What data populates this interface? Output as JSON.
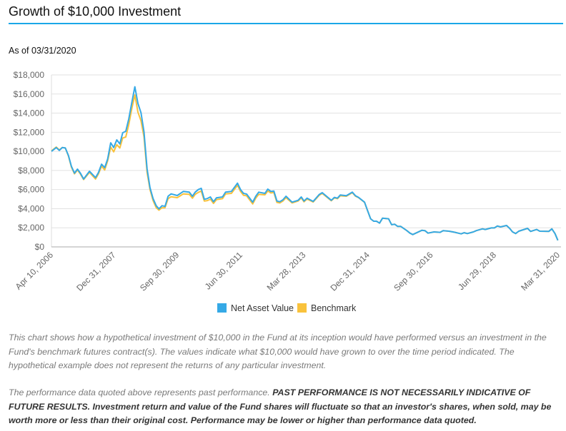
{
  "header": {
    "title": "Growth of $10,000 Investment",
    "as_of": "As of 03/31/2020"
  },
  "colors": {
    "accent": "#1aa7e8",
    "nav": "#35a9e6",
    "benchmark": "#f9c23c"
  },
  "chart_data": {
    "type": "line",
    "title": "",
    "xlabel": "",
    "ylabel": "",
    "ylim": [
      0,
      18000
    ],
    "xlim": [
      "2006-04-10",
      "2020-03-31"
    ],
    "grid": true,
    "legend_position": "bottom",
    "y_ticks": [
      "$0",
      "$2,000",
      "$4,000",
      "$6,000",
      "$8,000",
      "$10,000",
      "$12,000",
      "$14,000",
      "$16,000",
      "$18,000"
    ],
    "y_tick_values": [
      0,
      2000,
      4000,
      6000,
      8000,
      10000,
      12000,
      14000,
      16000,
      18000
    ],
    "x_ticks": [
      {
        "date": "2006-04-10",
        "label": "Apr 10, 2006"
      },
      {
        "date": "2007-12-31",
        "label": "Dec 31, 2007"
      },
      {
        "date": "2009-09-30",
        "label": "Sep 30, 2009"
      },
      {
        "date": "2011-06-30",
        "label": "Jun 30, 2011"
      },
      {
        "date": "2013-03-28",
        "label": "Mar 28, 2013"
      },
      {
        "date": "2014-12-31",
        "label": "Dec 31, 2014"
      },
      {
        "date": "2016-09-30",
        "label": "Sep 30, 2016"
      },
      {
        "date": "2018-06-29",
        "label": "Jun 29, 2018"
      },
      {
        "date": "2020-03-31",
        "label": "Mar 31, 2020"
      }
    ],
    "x": [
      "2006-04",
      "2006-05",
      "2006-06",
      "2006-07",
      "2006-08",
      "2006-09",
      "2006-10",
      "2006-11",
      "2006-12",
      "2007-01",
      "2007-02",
      "2007-04",
      "2007-06",
      "2007-07",
      "2007-08",
      "2007-09",
      "2007-10",
      "2007-11",
      "2007-12",
      "2008-01",
      "2008-02",
      "2008-03",
      "2008-04",
      "2008-05",
      "2008-06",
      "2008-07",
      "2008-08",
      "2008-09",
      "2008-10",
      "2008-11",
      "2008-12",
      "2009-01",
      "2009-02",
      "2009-03",
      "2009-04",
      "2009-05",
      "2009-06",
      "2009-07",
      "2009-09",
      "2009-11",
      "2010-01",
      "2010-02",
      "2010-03",
      "2010-04",
      "2010-05",
      "2010-06",
      "2010-07",
      "2010-08",
      "2010-09",
      "2010-10",
      "2010-12",
      "2011-01",
      "2011-03",
      "2011-05",
      "2011-06",
      "2011-07",
      "2011-08",
      "2011-10",
      "2011-11",
      "2011-12",
      "2012-02",
      "2012-03",
      "2012-04",
      "2012-05",
      "2012-06",
      "2012-07",
      "2012-08",
      "2012-09",
      "2012-11",
      "2013-01",
      "2013-02",
      "2013-03",
      "2013-04",
      "2013-06",
      "2013-08",
      "2013-09",
      "2013-12",
      "2014-01",
      "2014-02",
      "2014-03",
      "2014-05",
      "2014-07",
      "2014-08",
      "2014-09",
      "2014-11",
      "2014-12",
      "2015-01",
      "2015-02",
      "2015-03",
      "2015-04",
      "2015-05",
      "2015-07",
      "2015-08",
      "2015-09",
      "2015-10",
      "2015-11",
      "2016-01",
      "2016-02",
      "2016-03",
      "2016-04",
      "2016-06",
      "2016-07",
      "2016-08",
      "2016-10",
      "2016-12",
      "2017-01",
      "2017-03",
      "2017-05",
      "2017-06",
      "2017-07",
      "2017-08",
      "2017-09",
      "2017-11",
      "2017-12",
      "2018-02",
      "2018-03",
      "2018-05",
      "2018-06",
      "2018-07",
      "2018-08",
      "2018-10",
      "2018-11",
      "2018-12",
      "2019-01",
      "2019-02",
      "2019-05",
      "2019-06",
      "2019-08",
      "2019-09",
      "2019-12",
      "2020-01",
      "2020-02",
      "2020-03"
    ],
    "series": [
      {
        "name": "Net Asset Value",
        "color": "#35a9e6",
        "values": [
          10000,
          10400,
          10100,
          10400,
          10350,
          9560,
          8440,
          7720,
          8140,
          7690,
          7100,
          7920,
          7250,
          7790,
          8660,
          8300,
          9190,
          10900,
          10400,
          11200,
          10780,
          11950,
          12100,
          13400,
          15130,
          16760,
          15020,
          14040,
          12030,
          8170,
          6200,
          5060,
          4310,
          3980,
          4310,
          4240,
          5300,
          5550,
          5380,
          5800,
          5730,
          5300,
          5730,
          6000,
          6130,
          4980,
          5060,
          5230,
          4730,
          5130,
          5230,
          5730,
          5800,
          6670,
          6000,
          5600,
          5530,
          4680,
          5300,
          5730,
          5600,
          6050,
          5800,
          5850,
          4800,
          4730,
          4930,
          5300,
          4680,
          4880,
          5230,
          4800,
          5100,
          4760,
          5480,
          5680,
          4880,
          5180,
          5100,
          5430,
          5360,
          5730,
          5360,
          5180,
          4680,
          3810,
          2940,
          2690,
          2690,
          2490,
          3010,
          2940,
          2320,
          2370,
          2140,
          2140,
          1700,
          1440,
          1290,
          1440,
          1740,
          1700,
          1440,
          1570,
          1520,
          1700,
          1640,
          1520,
          1440,
          1370,
          1490,
          1400,
          1570,
          1700,
          1890,
          1820,
          1990,
          1990,
          2190,
          2090,
          2240,
          1940,
          1570,
          1400,
          1640,
          1940,
          1620,
          1820,
          1640,
          1620,
          1890,
          1400,
          690
        ]
      },
      {
        "name": "Benchmark",
        "color": "#f9c23c",
        "values": [
          10050,
          10450,
          10150,
          10400,
          10350,
          9500,
          8350,
          7650,
          8050,
          7600,
          7050,
          7800,
          7100,
          7650,
          8450,
          8050,
          9000,
          10450,
          9950,
          10700,
          10350,
          11400,
          11500,
          12800,
          14500,
          15900,
          14100,
          13200,
          11500,
          7800,
          6000,
          4850,
          4100,
          3850,
          4100,
          4100,
          5050,
          5250,
          5150,
          5550,
          5500,
          5100,
          5500,
          5700,
          5850,
          4800,
          4850,
          5000,
          4550,
          4950,
          5050,
          5550,
          5600,
          6450,
          5800,
          5400,
          5350,
          4500,
          5100,
          5500,
          5450,
          5850,
          5650,
          5700,
          4650,
          4600,
          4800,
          5150,
          4600,
          4800,
          5130,
          4720,
          5020,
          4700,
          5400,
          5600,
          4830,
          5120,
          5050,
          5350,
          5300,
          5680,
          5320,
          5150,
          4660,
          3800,
          2940,
          2690,
          2690,
          2490,
          3010,
          2940,
          2320,
          2370,
          2140,
          2140,
          1700,
          1440,
          1290,
          1440,
          1740,
          1700,
          1440,
          1570,
          1520,
          1700,
          1640,
          1520,
          1440,
          1370,
          1490,
          1400,
          1570,
          1700,
          1890,
          1820,
          1990,
          1990,
          2190,
          2090,
          2240,
          1940,
          1570,
          1400,
          1640,
          1940,
          1620,
          1820,
          1640,
          1620,
          1890,
          1400,
          690
        ]
      }
    ]
  },
  "legend": {
    "nav_label": "Net Asset Value",
    "benchmark_label": "Benchmark"
  },
  "notes": {
    "p1": "This chart shows how a hypothetical investment of $10,000 in the Fund at its inception would have performed versus an investment in the Fund's benchmark futures contract(s). The values indicate what $10,000 would have grown to over the time period indicated. The hypothetical example does not represent the returns of any particular investment.",
    "p2_regular": "The performance data quoted above represents past performance. ",
    "p2_bold": "PAST PERFORMANCE IS NOT NECESSARILY INDICATIVE OF FUTURE RESULTS. Investment return and value of the Fund shares will fluctuate so that an investor's shares, when sold, may be worth more or less than their original cost. Performance may be lower or higher than performance data quoted."
  }
}
